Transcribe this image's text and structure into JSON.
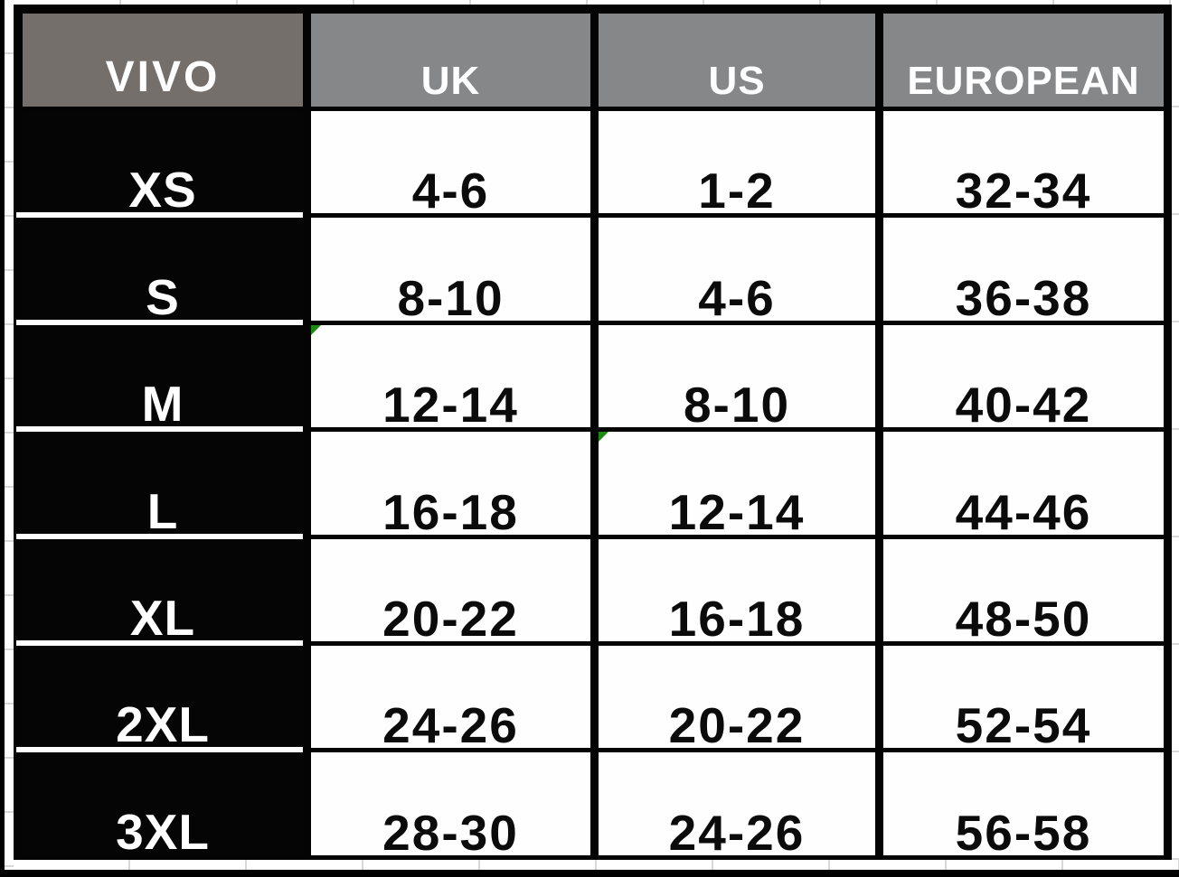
{
  "table": {
    "brand": "VIVO",
    "columns": [
      "UK",
      "US",
      "EUROPEAN"
    ],
    "column_keys": [
      "uk",
      "us",
      "european"
    ],
    "rows": [
      {
        "size": "XS",
        "uk": "4-6",
        "us": "1-2",
        "european": "32-34"
      },
      {
        "size": "S",
        "uk": "8-10",
        "us": "4-6",
        "european": "36-38"
      },
      {
        "size": "M",
        "uk": "12-14",
        "us": "8-10",
        "european": "40-42"
      },
      {
        "size": "L",
        "uk": "16-18",
        "us": "12-14",
        "european": "44-46"
      },
      {
        "size": "XL",
        "uk": "20-22",
        "us": "16-18",
        "european": "48-50"
      },
      {
        "size": "2XL",
        "uk": "24-26",
        "us": "20-22",
        "european": "52-54"
      },
      {
        "size": "3XL",
        "uk": "28-30",
        "us": "24-26",
        "european": "56-58"
      }
    ],
    "cell_flags": [
      {
        "row_index": 2,
        "column": "uk"
      },
      {
        "row_index": 3,
        "column": "us"
      }
    ]
  },
  "colors": {
    "header_gray": "#868789",
    "brand_header_gray": "#756F6C",
    "row_label_black": "#050505",
    "cell_white": "#FEFEFE",
    "text_dark": "#0B0B0B",
    "flag_green": "#1E8A14",
    "gridline_gray": "#D8D8D8",
    "frame_black": "#000000"
  }
}
